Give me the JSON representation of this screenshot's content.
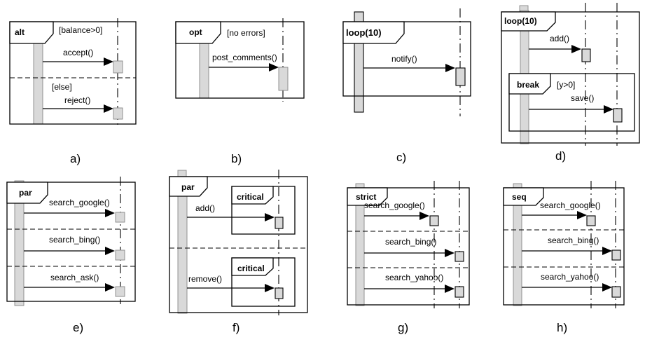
{
  "diagrams": {
    "a": {
      "caption": "a)",
      "operator": "alt",
      "guard1": "[balance>0]",
      "msg1": "accept()",
      "guard2": "[else]",
      "msg2": "reject()"
    },
    "b": {
      "caption": "b)",
      "operator": "opt",
      "guard": "[no errors]",
      "msg": "post_comments()"
    },
    "c": {
      "caption": "c)",
      "operator": "loop(10)",
      "msg": "notify()"
    },
    "d": {
      "caption": "d)",
      "operator": "loop(10)",
      "msg1": "add()",
      "inner_operator": "break",
      "guard": "[y>0]",
      "msg2": "save()"
    },
    "e": {
      "caption": "e)",
      "operator": "par",
      "msg1": "search_google()",
      "msg2": "search_bing()",
      "msg3": "search_ask()"
    },
    "f": {
      "caption": "f)",
      "operator": "par",
      "inner1": "critical",
      "msg1": "add()",
      "inner2": "critical",
      "msg2": "remove()"
    },
    "g": {
      "caption": "g)",
      "operator": "strict",
      "msg1": "search_google()",
      "msg2": "search_bing()",
      "msg3": "search_yahoo()"
    },
    "h": {
      "caption": "h)",
      "operator": "seq",
      "msg1": "search_google()",
      "msg2": "search_bing()",
      "msg3": "search_yahoo()"
    }
  }
}
